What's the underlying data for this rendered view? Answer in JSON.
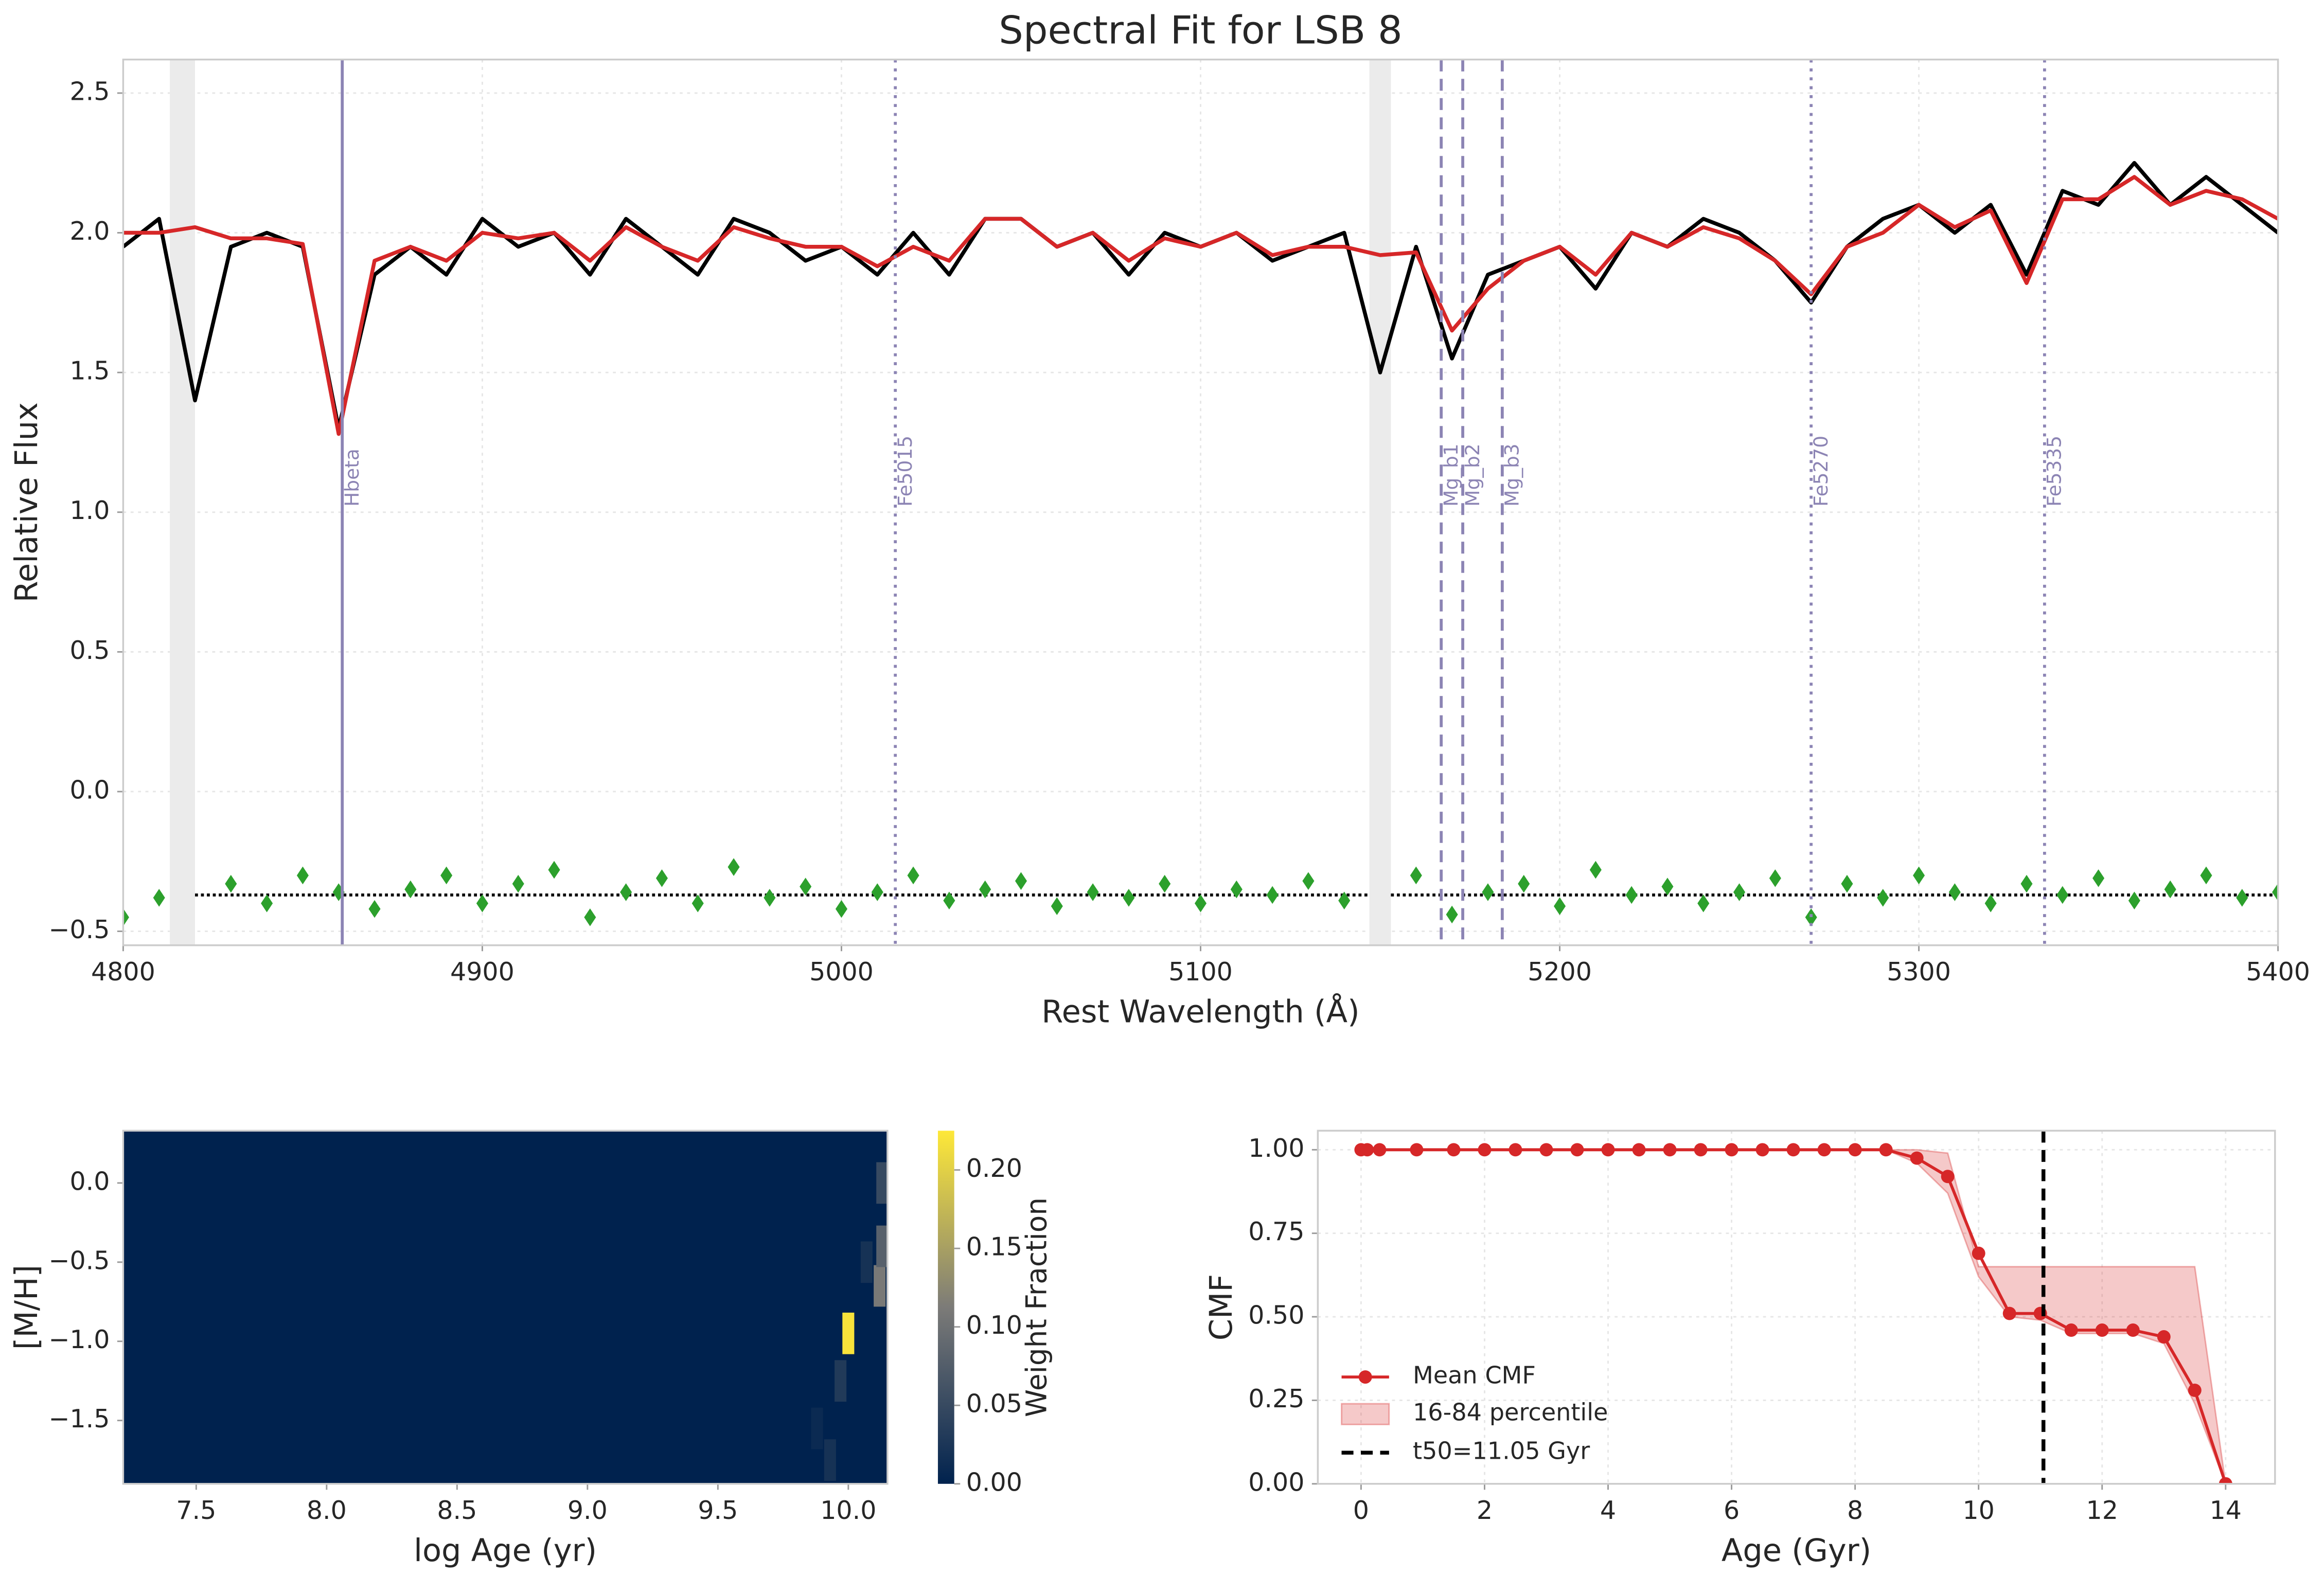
{
  "chart_data": [
    {
      "type": "line",
      "title": "Spectral Fit for LSB 8",
      "xlabel": "Rest Wavelength (Å)",
      "ylabel": "Relative Flux",
      "x": [
        4800,
        4810,
        4820,
        4830,
        4840,
        4850,
        4860,
        4870,
        4880,
        4890,
        4900,
        4910,
        4920,
        4930,
        4940,
        4950,
        4960,
        4970,
        4980,
        4990,
        5000,
        5010,
        5020,
        5030,
        5040,
        5050,
        5060,
        5070,
        5080,
        5090,
        5100,
        5110,
        5120,
        5130,
        5140,
        5150,
        5160,
        5170,
        5180,
        5190,
        5200,
        5210,
        5220,
        5230,
        5240,
        5250,
        5260,
        5270,
        5280,
        5290,
        5300,
        5310,
        5320,
        5330,
        5340,
        5350,
        5360,
        5370,
        5380,
        5390,
        5400
      ],
      "series": [
        {
          "color": "#000000",
          "values": [
            1.95,
            2.05,
            1.4,
            1.95,
            2.0,
            1.95,
            1.3,
            1.85,
            1.95,
            1.85,
            2.05,
            1.95,
            2.0,
            1.85,
            2.05,
            1.95,
            1.85,
            2.05,
            2.0,
            1.9,
            1.95,
            1.85,
            2.0,
            1.85,
            2.05,
            2.05,
            1.95,
            2.0,
            1.85,
            2.0,
            1.95,
            2.0,
            1.9,
            1.95,
            2.0,
            1.5,
            1.95,
            1.55,
            1.85,
            1.9,
            1.95,
            1.8,
            2.0,
            1.95,
            2.05,
            2.0,
            1.9,
            1.75,
            1.95,
            2.05,
            2.1,
            2.0,
            2.1,
            1.85,
            2.15,
            2.1,
            2.25,
            2.1,
            2.2,
            2.1,
            2.0
          ]
        },
        {
          "color": "#d62728",
          "values": [
            2.0,
            2.0,
            2.02,
            1.98,
            1.98,
            1.96,
            1.28,
            1.9,
            1.95,
            1.9,
            2.0,
            1.98,
            2.0,
            1.9,
            2.02,
            1.95,
            1.9,
            2.02,
            1.98,
            1.95,
            1.95,
            1.88,
            1.95,
            1.9,
            2.05,
            2.05,
            1.95,
            2.0,
            1.9,
            1.98,
            1.95,
            2.0,
            1.92,
            1.95,
            1.95,
            1.92,
            1.93,
            1.65,
            1.8,
            1.9,
            1.95,
            1.85,
            2.0,
            1.95,
            2.02,
            1.98,
            1.9,
            1.78,
            1.95,
            2.0,
            2.1,
            2.02,
            2.08,
            1.82,
            2.12,
            2.12,
            2.2,
            2.1,
            2.15,
            2.12,
            2.05
          ]
        },
        {
          "color": "#2ca02c",
          "marker": "diamond",
          "values": [
            -0.45,
            -0.38,
            null,
            -0.33,
            -0.4,
            -0.3,
            -0.36,
            -0.42,
            -0.35,
            -0.3,
            -0.4,
            -0.33,
            -0.28,
            -0.45,
            -0.36,
            -0.31,
            -0.4,
            -0.27,
            -0.38,
            -0.34,
            -0.42,
            -0.36,
            -0.3,
            -0.39,
            -0.35,
            -0.32,
            -0.41,
            -0.36,
            -0.38,
            -0.33,
            -0.4,
            -0.35,
            -0.37,
            -0.32,
            -0.39,
            null,
            -0.3,
            -0.44,
            -0.36,
            -0.33,
            -0.41,
            -0.28,
            -0.37,
            -0.34,
            -0.4,
            -0.36,
            -0.31,
            -0.45,
            -0.33,
            -0.38,
            -0.3,
            -0.36,
            -0.4,
            -0.33,
            -0.37,
            -0.31,
            -0.39,
            -0.35,
            -0.3,
            -0.38,
            -0.36
          ]
        }
      ],
      "residual_baseline": -0.37,
      "masked_regions": [
        [
          4813,
          4820
        ],
        [
          5147,
          5153
        ]
      ],
      "lines": [
        {
          "label": "Hbeta",
          "x": 4861,
          "style": "solid"
        },
        {
          "label": "Fe5015",
          "x": 5015,
          "style": "dotted"
        },
        {
          "label": "Mg_b1",
          "x": 5167,
          "style": "dashed"
        },
        {
          "label": "Mg_b2",
          "x": 5173,
          "style": "dashed"
        },
        {
          "label": "Mg_b3",
          "x": 5184,
          "style": "dashed"
        },
        {
          "label": "Fe5270",
          "x": 5270,
          "style": "dotted"
        },
        {
          "label": "Fe5335",
          "x": 5335,
          "style": "dotted"
        }
      ],
      "line_color": "#8c84b4",
      "xlim": [
        4800,
        5400
      ],
      "xticks": [
        4800,
        4900,
        5000,
        5100,
        5200,
        5300,
        5400
      ],
      "ylim": [
        -0.55,
        2.62
      ],
      "yticks": [
        {
          "value": -0.5,
          "label": "−0.5"
        },
        {
          "value": 0,
          "label": "0.0"
        },
        0.5,
        {
          "value": 1,
          "label": "1.0"
        },
        1.5,
        {
          "value": 2,
          "label": "2.0"
        },
        2.5
      ],
      "grid": true
    },
    {
      "type": "heatmap",
      "xlabel": "log Age (yr)",
      "ylabel": "[M/H]",
      "cells": [
        {
          "log_age": 10.0,
          "metallicity": -0.95,
          "weight": 0.22
        },
        {
          "log_age": 10.12,
          "metallicity": -0.65,
          "weight": 0.11
        },
        {
          "log_age": 10.13,
          "metallicity": -0.4,
          "weight": 0.08
        },
        {
          "log_age": 10.13,
          "metallicity": 0.0,
          "weight": 0.05
        },
        {
          "log_age": 9.97,
          "metallicity": -1.25,
          "weight": 0.03
        },
        {
          "log_age": 9.93,
          "metallicity": -1.75,
          "weight": 0.02
        },
        {
          "log_age": 9.88,
          "metallicity": -1.55,
          "weight": 0.01
        },
        {
          "log_age": 10.07,
          "metallicity": -0.5,
          "weight": 0.02
        }
      ],
      "colormap": [
        "#00224e",
        "#7c7b78",
        "#fee838"
      ],
      "xlim": [
        7.22,
        10.15
      ],
      "xticks": [
        7.5,
        {
          "value": 8,
          "label": "8.0"
        },
        8.5,
        {
          "value": 9,
          "label": "9.0"
        },
        9.5,
        {
          "value": 10,
          "label": "10.0"
        }
      ],
      "ylim": [
        -1.9,
        0.33
      ],
      "yticks": [
        {
          "value": -1.5,
          "label": "−1.5"
        },
        {
          "value": -1,
          "label": "−1.0"
        },
        {
          "value": -0.5,
          "label": "−0.5"
        },
        {
          "value": 0,
          "label": "0.0"
        }
      ],
      "colorbar": {
        "label": "Weight Fraction",
        "lim": [
          0,
          0.225
        ],
        "ticks": [
          {
            "value": 0,
            "label": "0.00"
          },
          {
            "value": 0.05,
            "label": "0.05"
          },
          {
            "value": 0.1,
            "label": "0.10"
          },
          {
            "value": 0.15,
            "label": "0.15"
          },
          {
            "value": 0.2,
            "label": "0.20"
          }
        ]
      }
    },
    {
      "type": "line",
      "xlabel": "Age (Gyr)",
      "ylabel": "CMF",
      "x": [
        0,
        0.1,
        0.3,
        0.9,
        1.5,
        2,
        2.5,
        3,
        3.5,
        4,
        4.5,
        5,
        5.5,
        6,
        6.5,
        7,
        7.5,
        8,
        8.5,
        9,
        9.5,
        10,
        10.5,
        11,
        11.5,
        12,
        12.5,
        13,
        13.5,
        14
      ],
      "series": [
        {
          "name": "Mean CMF",
          "color": "#d62728",
          "marker": "circle",
          "values": [
            1,
            1,
            1,
            1,
            1,
            1,
            1,
            1,
            1,
            1,
            1,
            1,
            1,
            1,
            1,
            1,
            1,
            1,
            1,
            0.975,
            0.92,
            0.69,
            0.51,
            0.51,
            0.46,
            0.46,
            0.46,
            0.44,
            0.28,
            0.0
          ]
        }
      ],
      "band": {
        "name": "16-84 percentile",
        "color": "#d62728",
        "lower": [
          1,
          1,
          1,
          1,
          1,
          1,
          1,
          1,
          1,
          1,
          1,
          1,
          1,
          1,
          1,
          1,
          1,
          1,
          1.0,
          0.96,
          0.87,
          0.62,
          0.5,
          0.49,
          0.45,
          0.45,
          0.45,
          0.42,
          0.24,
          0.0
        ],
        "upper": [
          1,
          1,
          1,
          1,
          1,
          1,
          1,
          1,
          1,
          1,
          1,
          1,
          1,
          1,
          1,
          1,
          1,
          1,
          1,
          1.0,
          0.99,
          0.65,
          0.65,
          0.65,
          0.65,
          0.65,
          0.65,
          0.65,
          0.65,
          0.0
        ]
      },
      "vline": {
        "name": "t50=11.05 Gyr",
        "x": 11.05,
        "color": "#000000"
      },
      "legend": "lower left",
      "xlim": [
        -0.7,
        14.8
      ],
      "xticks": [
        0,
        2,
        4,
        6,
        8,
        10,
        12,
        14
      ],
      "ylim": [
        0,
        1.057
      ],
      "yticks": [
        {
          "value": 0,
          "label": "0.00"
        },
        {
          "value": 0.25,
          "label": "0.25"
        },
        {
          "value": 0.5,
          "label": "0.50"
        },
        {
          "value": 0.75,
          "label": "0.75"
        },
        {
          "value": 1,
          "label": "1.00"
        }
      ],
      "grid": true
    }
  ]
}
